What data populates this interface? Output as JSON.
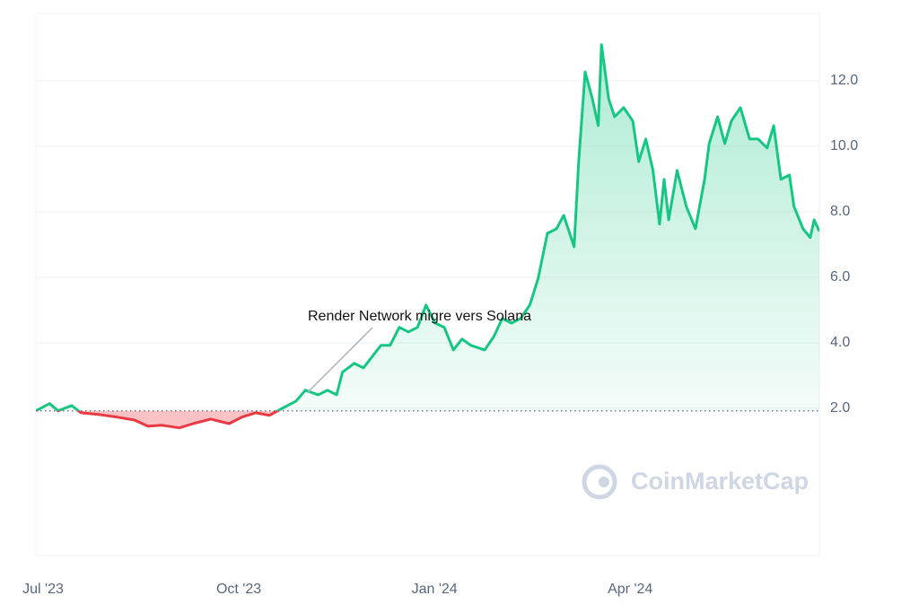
{
  "chart_data": {
    "type": "line",
    "baseline": 1.92,
    "annotations": [
      {
        "text": "Render Network migre vers Solana"
      }
    ],
    "watermark": "CoinMarketCap",
    "x": [
      -0.11,
      0.1,
      0.23,
      0.44,
      0.58,
      0.85,
      1.13,
      1.4,
      1.61,
      1.82,
      2.09,
      2.3,
      2.57,
      2.85,
      3.05,
      3.26,
      3.47,
      3.67,
      3.88,
      4.02,
      4.22,
      4.36,
      4.5,
      4.59,
      4.77,
      4.91,
      5.05,
      5.18,
      5.32,
      5.46,
      5.6,
      5.74,
      5.87,
      6.01,
      6.15,
      6.29,
      6.42,
      6.56,
      6.77,
      6.91,
      7.04,
      7.18,
      7.32,
      7.46,
      7.59,
      7.73,
      7.87,
      7.98,
      8.14,
      8.21,
      8.31,
      8.42,
      8.51,
      8.56,
      8.67,
      8.76,
      8.9,
      9.04,
      9.13,
      9.24,
      9.35,
      9.45,
      9.52,
      9.59,
      9.72,
      9.86,
      10.0,
      10.14,
      10.21,
      10.34,
      10.45,
      10.55,
      10.69,
      10.83,
      10.96,
      11.1,
      11.2,
      11.31,
      11.44,
      11.51,
      11.65,
      11.76,
      11.82,
      11.9
    ],
    "series": [
      {
        "color": "#16c784",
        "below_color": "#ea3943",
        "values": [
          1.92,
          2.14,
          1.92,
          2.08,
          1.86,
          1.81,
          1.73,
          1.64,
          1.45,
          1.48,
          1.4,
          1.53,
          1.67,
          1.53,
          1.73,
          1.86,
          1.78,
          2.0,
          2.22,
          2.55,
          2.41,
          2.55,
          2.41,
          3.1,
          3.37,
          3.23,
          3.59,
          3.92,
          3.92,
          4.47,
          4.33,
          4.47,
          5.15,
          4.6,
          4.47,
          3.78,
          4.11,
          3.92,
          3.78,
          4.19,
          4.74,
          4.6,
          4.74,
          5.15,
          5.97,
          7.34,
          7.48,
          7.89,
          6.93,
          9.53,
          12.27,
          11.45,
          10.63,
          13.1,
          11.45,
          10.9,
          11.18,
          10.77,
          9.53,
          10.22,
          9.26,
          7.62,
          8.99,
          7.75,
          9.26,
          8.16,
          7.48,
          8.99,
          10.08,
          10.9,
          10.08,
          10.77,
          11.18,
          10.22,
          10.22,
          9.95,
          10.63,
          8.99,
          9.12,
          8.16,
          7.48,
          7.21,
          7.75,
          7.4
        ]
      }
    ],
    "xlim": [
      -0.11,
      11.9
    ],
    "xticks": [
      {
        "value": 0,
        "label": "Jul '23"
      },
      {
        "value": 3,
        "label": "Oct '23"
      },
      {
        "value": 6,
        "label": "Jan '24"
      },
      {
        "value": 9,
        "label": "Apr '24"
      }
    ],
    "ylim": [
      -2.5,
      14
    ],
    "yticks": [
      {
        "value": 2,
        "label": "2.0"
      },
      {
        "value": 4,
        "label": "4.0"
      },
      {
        "value": 6,
        "label": "6.0"
      },
      {
        "value": 8,
        "label": "8.0"
      },
      {
        "value": 10,
        "label": "10.0"
      },
      {
        "value": 12,
        "label": "12.0"
      }
    ],
    "grid": true
  }
}
